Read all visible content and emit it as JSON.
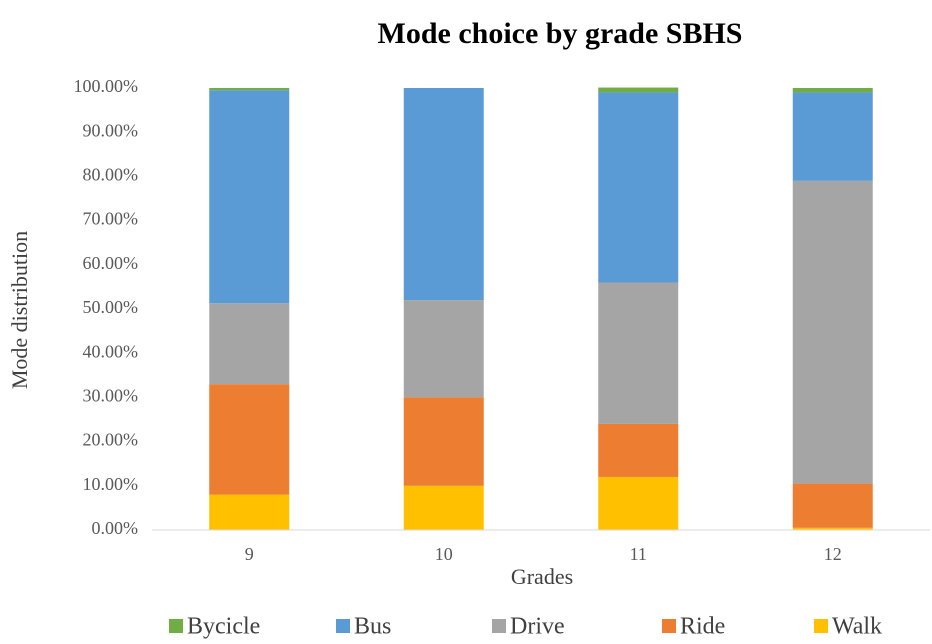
{
  "chart_data": {
    "type": "stacked_bar",
    "title": "Mode choice by grade SBHS",
    "x_label": "Grades",
    "y_label": "Mode distribution",
    "categories": [
      "9",
      "10",
      "11",
      "12"
    ],
    "series": [
      {
        "name": "Bycicle",
        "color": "#70ad47",
        "values": [
          0.5,
          0,
          1.1,
          1
        ]
      },
      {
        "name": "Bus",
        "color": "#5b9bd5",
        "values": [
          48.2,
          48,
          43,
          20
        ]
      },
      {
        "name": "Drive",
        "color": "#a5a5a5",
        "values": [
          18.3,
          22,
          32,
          68.5
        ]
      },
      {
        "name": "Ride",
        "color": "#ed7d31",
        "values": [
          25,
          20,
          12,
          10
        ]
      },
      {
        "name": "Walk",
        "color": "#ffc000",
        "values": [
          8,
          10,
          12,
          0.5
        ]
      }
    ],
    "ylim": [
      0,
      100
    ],
    "yticks": [
      {
        "value": 0,
        "label": "0.00%"
      },
      {
        "value": 10,
        "label": "10.00%"
      },
      {
        "value": 20,
        "label": "20.00%"
      },
      {
        "value": 30,
        "label": "30.00%"
      },
      {
        "value": 40,
        "label": "40.00%"
      },
      {
        "value": 50,
        "label": "50.00%"
      },
      {
        "value": 60,
        "label": "60.00%"
      },
      {
        "value": 70,
        "label": "70.00%"
      },
      {
        "value": 80,
        "label": "80.00%"
      },
      {
        "value": 90,
        "label": "90.00%"
      },
      {
        "value": 100,
        "label": "100.00%"
      }
    ],
    "grid": false,
    "legend": "bottom"
  }
}
